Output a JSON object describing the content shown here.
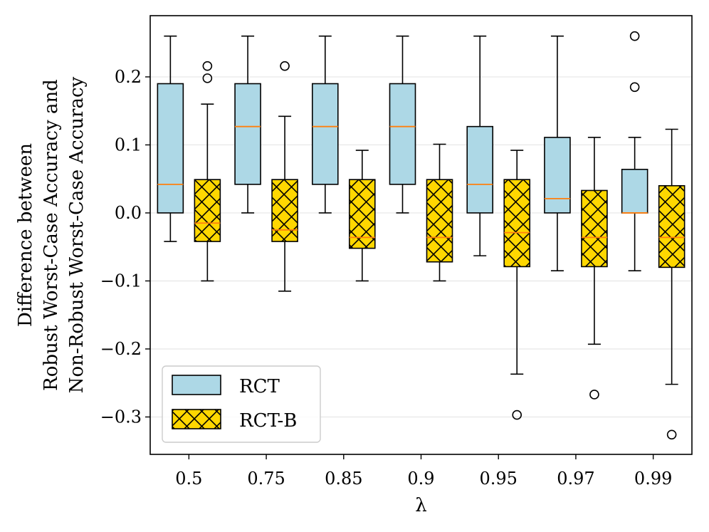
{
  "chart_data": {
    "type": "box",
    "title": "",
    "xlabel": "λ",
    "ylabel_lines": [
      "Difference between",
      "Robust Worst-Case Accuracy and",
      "Non-Robust Worst-Case Accuracy"
    ],
    "ylim": [
      -0.355,
      0.29
    ],
    "yticks": [
      -0.3,
      -0.2,
      -0.1,
      0.0,
      0.1,
      0.2
    ],
    "ytick_labels": [
      "−0.3",
      "−0.2",
      "−0.1",
      "0.0",
      "0.1",
      "0.2"
    ],
    "categories": [
      "0.5",
      "0.75",
      "0.85",
      "0.9",
      "0.95",
      "0.97",
      "0.99"
    ],
    "grid": "horizontal",
    "legend_position": "lower-left",
    "series": [
      {
        "name": "RCT",
        "color": "#add8e6",
        "hatch": "none",
        "boxes": [
          {
            "whisker_low": -0.042,
            "q1": 0.0,
            "median": 0.042,
            "q3": 0.19,
            "whisker_high": 0.26,
            "outliers": []
          },
          {
            "whisker_low": 0.0,
            "q1": 0.042,
            "median": 0.127,
            "q3": 0.19,
            "whisker_high": 0.26,
            "outliers": []
          },
          {
            "whisker_low": 0.0,
            "q1": 0.042,
            "median": 0.127,
            "q3": 0.19,
            "whisker_high": 0.26,
            "outliers": []
          },
          {
            "whisker_low": 0.0,
            "q1": 0.042,
            "median": 0.127,
            "q3": 0.19,
            "whisker_high": 0.26,
            "outliers": []
          },
          {
            "whisker_low": -0.063,
            "q1": 0.0,
            "median": 0.042,
            "q3": 0.127,
            "whisker_high": 0.26,
            "outliers": []
          },
          {
            "whisker_low": -0.085,
            "q1": 0.0,
            "median": 0.021,
            "q3": 0.111,
            "whisker_high": 0.26,
            "outliers": []
          },
          {
            "whisker_low": -0.085,
            "q1": 0.0,
            "median": 0.0,
            "q3": 0.064,
            "whisker_high": 0.111,
            "outliers": [
              0.185,
              0.26
            ]
          }
        ]
      },
      {
        "name": "RCT-B",
        "color": "#ffd700",
        "hatch": "cross",
        "boxes": [
          {
            "whisker_low": -0.1,
            "q1": -0.042,
            "median": -0.015,
            "q3": 0.049,
            "whisker_high": 0.16,
            "outliers": [
              0.198,
              0.216
            ]
          },
          {
            "whisker_low": -0.115,
            "q1": -0.042,
            "median": -0.025,
            "q3": 0.049,
            "whisker_high": 0.142,
            "outliers": [
              0.216
            ]
          },
          {
            "whisker_low": -0.1,
            "q1": -0.052,
            "median": -0.036,
            "q3": 0.049,
            "whisker_high": 0.092,
            "outliers": []
          },
          {
            "whisker_low": -0.1,
            "q1": -0.072,
            "median": -0.036,
            "q3": 0.049,
            "whisker_high": 0.101,
            "outliers": []
          },
          {
            "whisker_low": -0.237,
            "q1": -0.079,
            "median": -0.029,
            "q3": 0.049,
            "whisker_high": 0.092,
            "outliers": [
              -0.297
            ]
          },
          {
            "whisker_low": -0.193,
            "q1": -0.079,
            "median": -0.036,
            "q3": 0.033,
            "whisker_high": 0.111,
            "outliers": [
              -0.267
            ]
          },
          {
            "whisker_low": -0.252,
            "q1": -0.08,
            "median": -0.036,
            "q3": 0.04,
            "whisker_high": 0.123,
            "outliers": [
              -0.326
            ]
          }
        ]
      }
    ]
  },
  "colors": {
    "median_line": "#ff7f0e",
    "grid": "#e6e6e6",
    "axis": "#000000"
  }
}
